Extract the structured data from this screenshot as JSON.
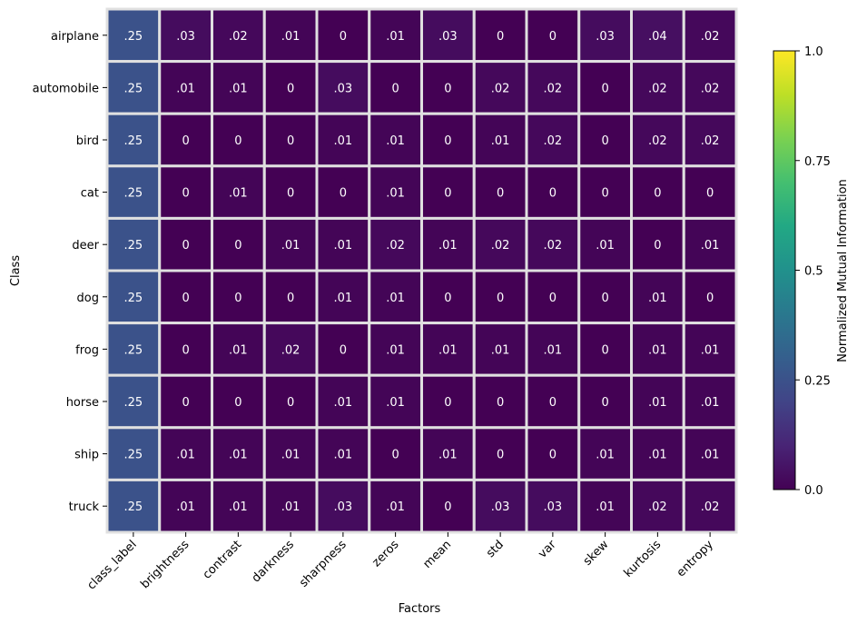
{
  "chart_data": {
    "type": "heatmap",
    "title": "",
    "xlabel": "Factors",
    "ylabel": "Class",
    "x": [
      "class_label",
      "brightness",
      "contrast",
      "darkness",
      "sharpness",
      "zeros",
      "mean",
      "std",
      "var",
      "skew",
      "kurtosis",
      "entropy"
    ],
    "y": [
      "airplane",
      "automobile",
      "bird",
      "cat",
      "deer",
      "dog",
      "frog",
      "horse",
      "ship",
      "truck"
    ],
    "values": [
      [
        0.25,
        0.03,
        0.02,
        0.01,
        0,
        0.01,
        0.03,
        0,
        0,
        0.03,
        0.04,
        0.02
      ],
      [
        0.25,
        0.01,
        0.01,
        0,
        0.03,
        0,
        0,
        0.02,
        0.02,
        0,
        0.02,
        0.02
      ],
      [
        0.25,
        0,
        0,
        0,
        0.01,
        0.01,
        0,
        0.01,
        0.02,
        0,
        0.02,
        0.02
      ],
      [
        0.25,
        0,
        0.01,
        0,
        0,
        0.01,
        0,
        0,
        0,
        0,
        0,
        0
      ],
      [
        0.25,
        0,
        0,
        0.01,
        0.01,
        0.02,
        0.01,
        0.02,
        0.02,
        0.01,
        0,
        0.01
      ],
      [
        0.25,
        0,
        0,
        0,
        0.01,
        0.01,
        0,
        0,
        0,
        0,
        0.01,
        0
      ],
      [
        0.25,
        0,
        0.01,
        0.02,
        0,
        0.01,
        0.01,
        0.01,
        0.01,
        0,
        0.01,
        0.01
      ],
      [
        0.25,
        0,
        0,
        0,
        0.01,
        0.01,
        0,
        0,
        0,
        0,
        0.01,
        0.01
      ],
      [
        0.25,
        0.01,
        0.01,
        0.01,
        0.01,
        0,
        0.01,
        0,
        0,
        0.01,
        0.01,
        0.01
      ],
      [
        0.25,
        0.01,
        0.01,
        0.01,
        0.03,
        0.01,
        0,
        0.03,
        0.03,
        0.01,
        0.02,
        0.02
      ]
    ],
    "cell_labels": [
      [
        ".25",
        ".03",
        ".02",
        ".01",
        "0",
        ".01",
        ".03",
        "0",
        "0",
        ".03",
        ".04",
        ".02"
      ],
      [
        ".25",
        ".01",
        ".01",
        "0",
        ".03",
        "0",
        "0",
        ".02",
        ".02",
        "0",
        ".02",
        ".02"
      ],
      [
        ".25",
        "0",
        "0",
        "0",
        ".01",
        ".01",
        "0",
        ".01",
        ".02",
        "0",
        ".02",
        ".02"
      ],
      [
        ".25",
        "0",
        ".01",
        "0",
        "0",
        ".01",
        "0",
        "0",
        "0",
        "0",
        "0",
        "0"
      ],
      [
        ".25",
        "0",
        "0",
        ".01",
        ".01",
        ".02",
        ".01",
        ".02",
        ".02",
        ".01",
        "0",
        ".01"
      ],
      [
        ".25",
        "0",
        "0",
        "0",
        ".01",
        ".01",
        "0",
        "0",
        "0",
        "0",
        ".01",
        "0"
      ],
      [
        ".25",
        "0",
        ".01",
        ".02",
        "0",
        ".01",
        ".01",
        ".01",
        ".01",
        "0",
        ".01",
        ".01"
      ],
      [
        ".25",
        "0",
        "0",
        "0",
        ".01",
        ".01",
        "0",
        "0",
        "0",
        "0",
        ".01",
        ".01"
      ],
      [
        ".25",
        ".01",
        ".01",
        ".01",
        ".01",
        "0",
        ".01",
        "0",
        "0",
        ".01",
        ".01",
        ".01"
      ],
      [
        ".25",
        ".01",
        ".01",
        ".01",
        ".03",
        ".01",
        "0",
        ".03",
        ".03",
        ".01",
        ".02",
        ".02"
      ]
    ],
    "colormap": "viridis",
    "vmin": 0,
    "vmax": 1,
    "colorbar": {
      "label": "Normalized Mutual Information",
      "ticks": [
        0,
        0.25,
        0.5,
        0.75,
        1
      ],
      "tick_labels": [
        "0.0",
        "0.25",
        "0.5",
        "0.75",
        "1.0"
      ],
      "placement": "right"
    },
    "grid": false,
    "cell_border_color": "#e0e0e0"
  }
}
